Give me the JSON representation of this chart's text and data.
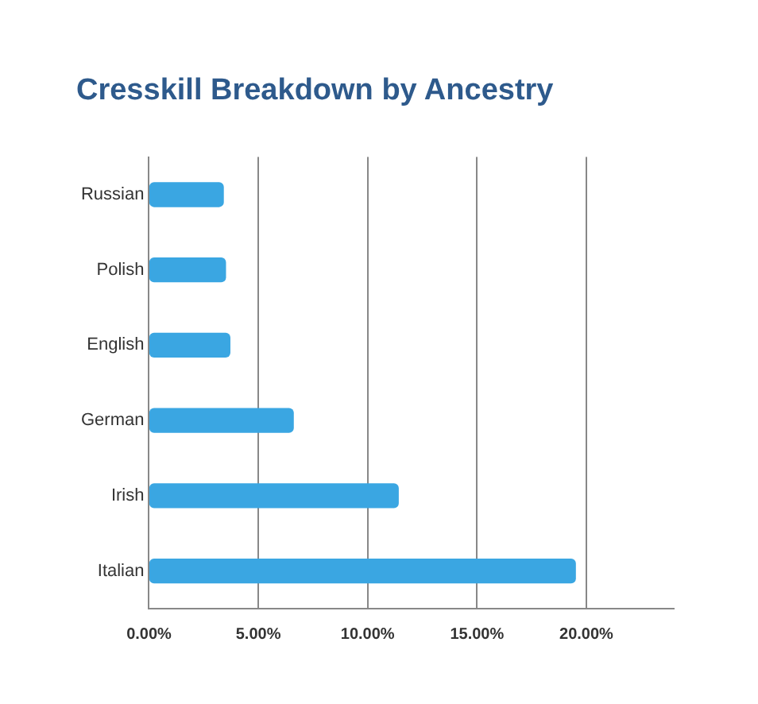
{
  "chart_data": {
    "type": "bar",
    "orientation": "horizontal",
    "title": "Cresskill Breakdown by Ancestry",
    "categories": [
      "Russian",
      "Polish",
      "English",
      "German",
      "Irish",
      "Italian"
    ],
    "values": [
      3.4,
      3.5,
      3.7,
      6.6,
      11.4,
      19.5
    ],
    "color": "#3aa6e2",
    "xlim": [
      0,
      24
    ],
    "xticks": [
      {
        "value": 0,
        "label": "0.00%"
      },
      {
        "value": 5,
        "label": "5.00%"
      },
      {
        "value": 10,
        "label": "10.00%"
      },
      {
        "value": 15,
        "label": "15.00%"
      },
      {
        "value": 20,
        "label": "20.00%"
      }
    ],
    "grid": "x",
    "legend": false
  }
}
